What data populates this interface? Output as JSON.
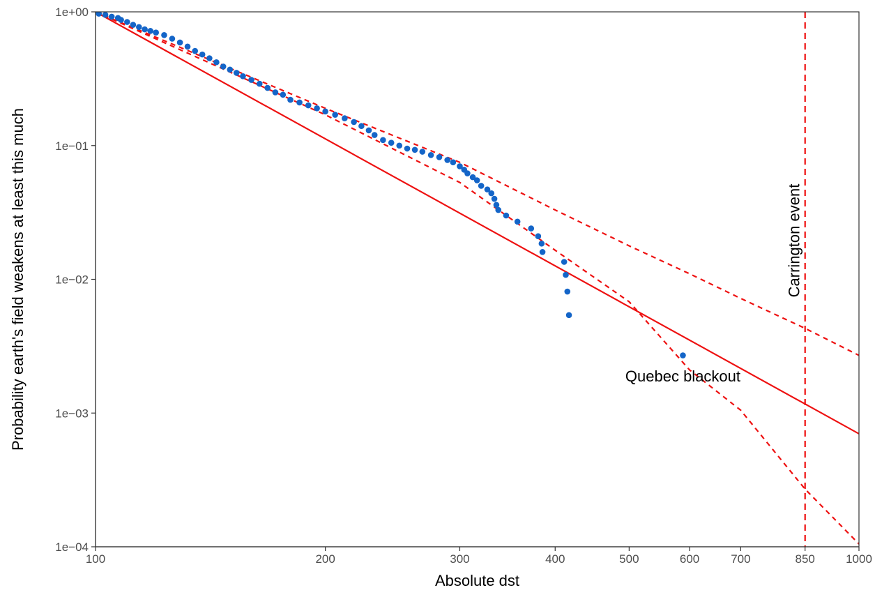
{
  "chart_data": {
    "type": "scatter",
    "xlabel": "Absolute dst",
    "ylabel": "Probability earth's field weakens at least this much",
    "x_scale": "log",
    "y_scale": "log",
    "xlim": [
      100,
      1000
    ],
    "ylim": [
      0.0001,
      1
    ],
    "x_ticks": [
      100,
      200,
      300,
      400,
      500,
      600,
      700,
      850,
      1000
    ],
    "x_tick_labels": [
      "100",
      "200",
      "300",
      "400",
      "500",
      "600",
      "700",
      "850",
      "1000"
    ],
    "y_ticks": [
      0.0001,
      0.001,
      0.01,
      0.1,
      1
    ],
    "y_tick_labels": [
      "1e−04",
      "1e−03",
      "1e−02",
      "1e−01",
      "1e+00"
    ],
    "grid": false,
    "colors": {
      "points": "#1465c8",
      "fit": "#ee1111",
      "axis": "#333333"
    },
    "points": [
      [
        100,
        1.0
      ],
      [
        101,
        0.97
      ],
      [
        103,
        0.95
      ],
      [
        105,
        0.92
      ],
      [
        107,
        0.9
      ],
      [
        108,
        0.87
      ],
      [
        110,
        0.84
      ],
      [
        112,
        0.8
      ],
      [
        114,
        0.77
      ],
      [
        116,
        0.74
      ],
      [
        118,
        0.72
      ],
      [
        120,
        0.7
      ],
      [
        123,
        0.67
      ],
      [
        126,
        0.63
      ],
      [
        129,
        0.59
      ],
      [
        132,
        0.55
      ],
      [
        135,
        0.51
      ],
      [
        138,
        0.48
      ],
      [
        141,
        0.45
      ],
      [
        144,
        0.42
      ],
      [
        147,
        0.39
      ],
      [
        150,
        0.37
      ],
      [
        153,
        0.35
      ],
      [
        156,
        0.33
      ],
      [
        160,
        0.31
      ],
      [
        164,
        0.29
      ],
      [
        168,
        0.27
      ],
      [
        172,
        0.25
      ],
      [
        176,
        0.24
      ],
      [
        180,
        0.22
      ],
      [
        185,
        0.21
      ],
      [
        190,
        0.2
      ],
      [
        195,
        0.19
      ],
      [
        200,
        0.18
      ],
      [
        206,
        0.17
      ],
      [
        212,
        0.16
      ],
      [
        218,
        0.15
      ],
      [
        223,
        0.14
      ],
      [
        228,
        0.13
      ],
      [
        232,
        0.12
      ],
      [
        238,
        0.11
      ],
      [
        244,
        0.105
      ],
      [
        250,
        0.1
      ],
      [
        256,
        0.095
      ],
      [
        262,
        0.093
      ],
      [
        268,
        0.09
      ],
      [
        275,
        0.085
      ],
      [
        282,
        0.082
      ],
      [
        289,
        0.078
      ],
      [
        294,
        0.075
      ],
      [
        300,
        0.07
      ],
      [
        304,
        0.066
      ],
      [
        307,
        0.062
      ],
      [
        312,
        0.058
      ],
      [
        316,
        0.055
      ],
      [
        320,
        0.05
      ],
      [
        326,
        0.047
      ],
      [
        330,
        0.044
      ],
      [
        333,
        0.04
      ],
      [
        335,
        0.036
      ],
      [
        337,
        0.033
      ],
      [
        345,
        0.03
      ],
      [
        357,
        0.027
      ],
      [
        372,
        0.024
      ],
      [
        380,
        0.021
      ],
      [
        384,
        0.0185
      ],
      [
        385,
        0.016
      ],
      [
        411,
        0.0135
      ],
      [
        413,
        0.0108
      ],
      [
        415,
        0.0081
      ],
      [
        417,
        0.0054
      ],
      [
        588,
        0.0027
      ]
    ],
    "fit_line": {
      "name": "",
      "style": "solid",
      "x": [
        100,
        1000
      ],
      "y": [
        1.0,
        0.0007
      ]
    },
    "ci_upper": {
      "style": "dashed",
      "x": [
        100,
        200,
        300,
        400,
        500,
        600,
        700,
        850,
        1000
      ],
      "y": [
        1.0,
        0.19,
        0.075,
        0.033,
        0.0178,
        0.011,
        0.0072,
        0.0043,
        0.0027
      ]
    },
    "ci_lower": {
      "style": "dashed",
      "x": [
        100,
        200,
        300,
        400,
        500,
        600,
        700,
        850,
        1000
      ],
      "y": [
        1.0,
        0.17,
        0.053,
        0.0165,
        0.0068,
        0.0021,
        0.00105,
        0.00027,
        0.000105
      ]
    },
    "vline": {
      "x": 850,
      "label": "Carrington event",
      "style": "dashed"
    },
    "annotations": [
      {
        "text": "Quebec blackout",
        "x": 588,
        "y": 0.0019
      }
    ]
  }
}
